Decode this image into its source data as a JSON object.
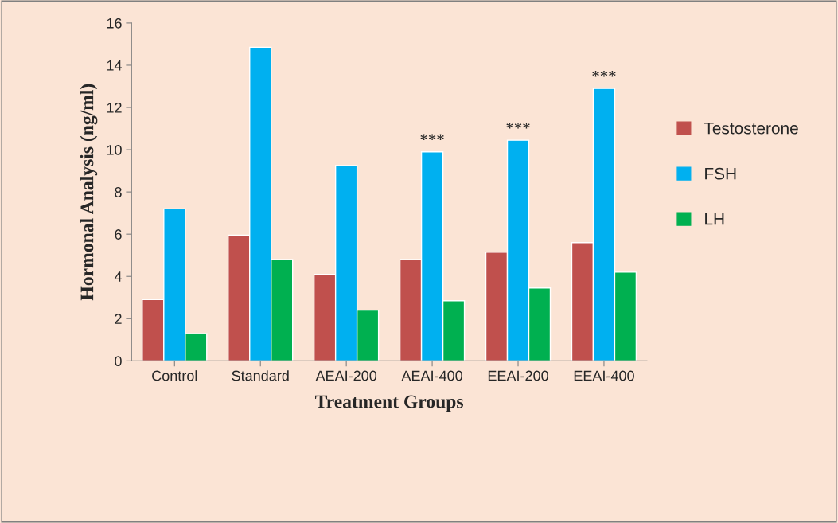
{
  "chart_data": {
    "type": "bar",
    "xlabel": "Treatment Groups",
    "ylabel": "Hormonal Analysis (ng/ml)",
    "categories": [
      "Control",
      "Standard",
      "AEAI-200",
      "AEAI-400",
      "EEAI-200",
      "EEAI-400"
    ],
    "series": [
      {
        "name": "Testosterone",
        "color": "#c0504d",
        "values": [
          2.9,
          5.95,
          4.1,
          4.8,
          5.15,
          5.6
        ]
      },
      {
        "name": "FSH",
        "color": "#00b0f0",
        "values": [
          7.2,
          14.85,
          9.25,
          9.9,
          10.45,
          12.9
        ]
      },
      {
        "name": "LH",
        "color": "#00b050",
        "values": [
          1.3,
          4.8,
          2.4,
          2.85,
          3.45,
          4.2
        ]
      }
    ],
    "ylim": [
      0,
      16
    ],
    "yticks": [
      0,
      2,
      4,
      6,
      8,
      10,
      12,
      14,
      16
    ],
    "grid": false,
    "legend": "right",
    "annotations": [
      {
        "text": "***",
        "x": "AEAI-400",
        "y": 9.9
      },
      {
        "text": "***",
        "x": "EEAI-200",
        "y": 10.45
      },
      {
        "text": "***",
        "x": "EEAI-400",
        "y": 12.9
      }
    ]
  }
}
